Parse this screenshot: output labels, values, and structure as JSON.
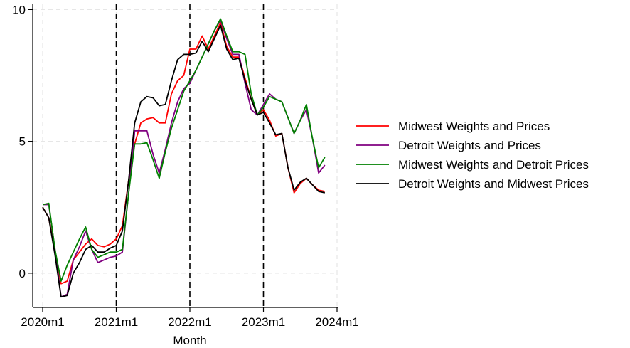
{
  "chart_data": {
    "type": "line",
    "title": "",
    "xlabel": "Month",
    "ylabel": "",
    "x_ticks": [
      "2020m1",
      "2021m1",
      "2022m1",
      "2023m1",
      "2024m1"
    ],
    "y_ticks": [
      0,
      5,
      10
    ],
    "xlim": [
      0,
      48
    ],
    "ylim": [
      -1.3,
      10.2
    ],
    "grid": true,
    "legend_position": "right",
    "vertical_reference_lines": [
      "2021m1",
      "2022m1",
      "2023m1"
    ],
    "series": [
      {
        "name": "Midwest Weights and Prices",
        "color": "#ff0000",
        "x": [
          0,
          1,
          2,
          3,
          4,
          5,
          6,
          7,
          8,
          9,
          10,
          11,
          12,
          13,
          14,
          15,
          16,
          17,
          18,
          19,
          20,
          21,
          22,
          23,
          24,
          25,
          26,
          27,
          28,
          29,
          30,
          31,
          32,
          33,
          34,
          35,
          36,
          37,
          38,
          39,
          40,
          41,
          42,
          43,
          44,
          45,
          46
        ],
        "values": [
          2.5,
          2.1,
          0.8,
          -0.4,
          -0.3,
          0.5,
          0.8,
          1.1,
          1.3,
          1.05,
          1.0,
          1.1,
          1.3,
          1.8,
          3.5,
          4.9,
          5.7,
          5.85,
          5.9,
          5.7,
          5.7,
          6.8,
          7.3,
          7.5,
          8.5,
          8.5,
          9.0,
          8.5,
          9.0,
          9.5,
          8.6,
          8.2,
          8.2,
          7.4,
          6.6,
          6.0,
          6.2,
          5.8,
          5.2,
          5.3,
          4.0,
          3.05,
          3.4,
          3.6,
          3.35,
          3.15,
          3.1
        ]
      },
      {
        "name": "Detroit Weights and Prices",
        "color": "#800080",
        "x": [
          0,
          1,
          2,
          3,
          4,
          5,
          6,
          7,
          8,
          9,
          10,
          11,
          12,
          13,
          14,
          15,
          16,
          17,
          18,
          19,
          20,
          21,
          22,
          23,
          24,
          25,
          26,
          27,
          28,
          29,
          30,
          31,
          32,
          33,
          34,
          35,
          36,
          37,
          38,
          39,
          40,
          41,
          42,
          43,
          44,
          45,
          46
        ],
        "values": [
          2.6,
          2.6,
          0.9,
          -0.9,
          -0.8,
          0.5,
          1.0,
          1.6,
          0.9,
          0.4,
          0.5,
          0.6,
          0.65,
          0.8,
          3.0,
          5.4,
          5.4,
          5.4,
          4.5,
          3.8,
          4.7,
          5.7,
          6.5,
          7.0,
          7.2,
          7.7,
          8.2,
          8.7,
          9.2,
          9.6,
          8.9,
          8.3,
          8.3,
          7.2,
          6.2,
          6.0,
          6.4,
          6.8,
          6.6,
          6.5,
          5.9,
          5.3,
          5.8,
          6.2,
          5.1,
          3.8,
          4.1
        ]
      },
      {
        "name": "Midwest Weights and Detroit Prices",
        "color": "#008000",
        "x": [
          0,
          1,
          2,
          3,
          4,
          5,
          6,
          7,
          8,
          9,
          10,
          11,
          12,
          13,
          14,
          15,
          16,
          17,
          18,
          19,
          20,
          21,
          22,
          23,
          24,
          25,
          26,
          27,
          28,
          29,
          30,
          31,
          32,
          33,
          34,
          35,
          36,
          37,
          38,
          39,
          40,
          41,
          42,
          43,
          44,
          45,
          46
        ],
        "values": [
          2.6,
          2.65,
          0.9,
          -0.3,
          0.3,
          0.8,
          1.3,
          1.75,
          0.9,
          0.6,
          0.7,
          0.8,
          0.8,
          0.9,
          3.0,
          4.9,
          4.9,
          4.95,
          4.3,
          3.6,
          4.6,
          5.5,
          6.2,
          6.9,
          7.3,
          7.7,
          8.2,
          8.7,
          9.2,
          9.65,
          9.0,
          8.4,
          8.4,
          8.3,
          6.8,
          6.0,
          6.3,
          6.7,
          6.6,
          6.5,
          5.9,
          5.3,
          5.8,
          6.4,
          5.1,
          4.0,
          4.4
        ]
      },
      {
        "name": "Detroit Weights and Midwest Prices",
        "color": "#000000",
        "x": [
          0,
          1,
          2,
          3,
          4,
          5,
          6,
          7,
          8,
          9,
          10,
          11,
          12,
          13,
          14,
          15,
          16,
          17,
          18,
          19,
          20,
          21,
          22,
          23,
          24,
          25,
          26,
          27,
          28,
          29,
          30,
          31,
          32,
          33,
          34,
          35,
          36,
          37,
          38,
          39,
          40,
          41,
          42,
          43,
          44,
          45,
          46
        ],
        "values": [
          2.5,
          2.1,
          0.7,
          -0.9,
          -0.85,
          0.0,
          0.4,
          0.9,
          1.05,
          0.8,
          0.8,
          0.95,
          1.05,
          1.6,
          3.5,
          5.7,
          6.5,
          6.7,
          6.65,
          6.35,
          6.4,
          7.3,
          8.1,
          8.3,
          8.3,
          8.35,
          8.8,
          8.4,
          8.9,
          9.4,
          8.5,
          8.1,
          8.15,
          7.3,
          6.6,
          6.0,
          6.1,
          5.7,
          5.25,
          5.3,
          4.0,
          3.15,
          3.45,
          3.6,
          3.35,
          3.1,
          3.05
        ]
      }
    ]
  }
}
